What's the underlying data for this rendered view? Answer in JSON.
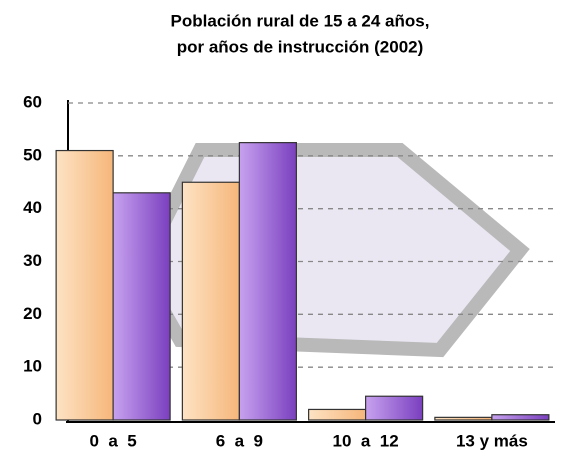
{
  "chart_data": {
    "type": "bar",
    "title": [
      "Población rural de 15 a 24 años,",
      "por años de instrucción (2002)"
    ],
    "categories": [
      "0  a  5",
      "6  a  9",
      "10  a  12",
      "13 y más"
    ],
    "series": [
      {
        "color": "#fbc994",
        "values": [
          51,
          45,
          2,
          0.5
        ]
      },
      {
        "color": "#9a62d6",
        "values": [
          43,
          52.5,
          4.5,
          1
        ]
      }
    ],
    "ylim": [
      0,
      60
    ],
    "yticks": [
      0,
      10,
      20,
      30,
      40,
      50,
      60
    ],
    "grid": true
  }
}
